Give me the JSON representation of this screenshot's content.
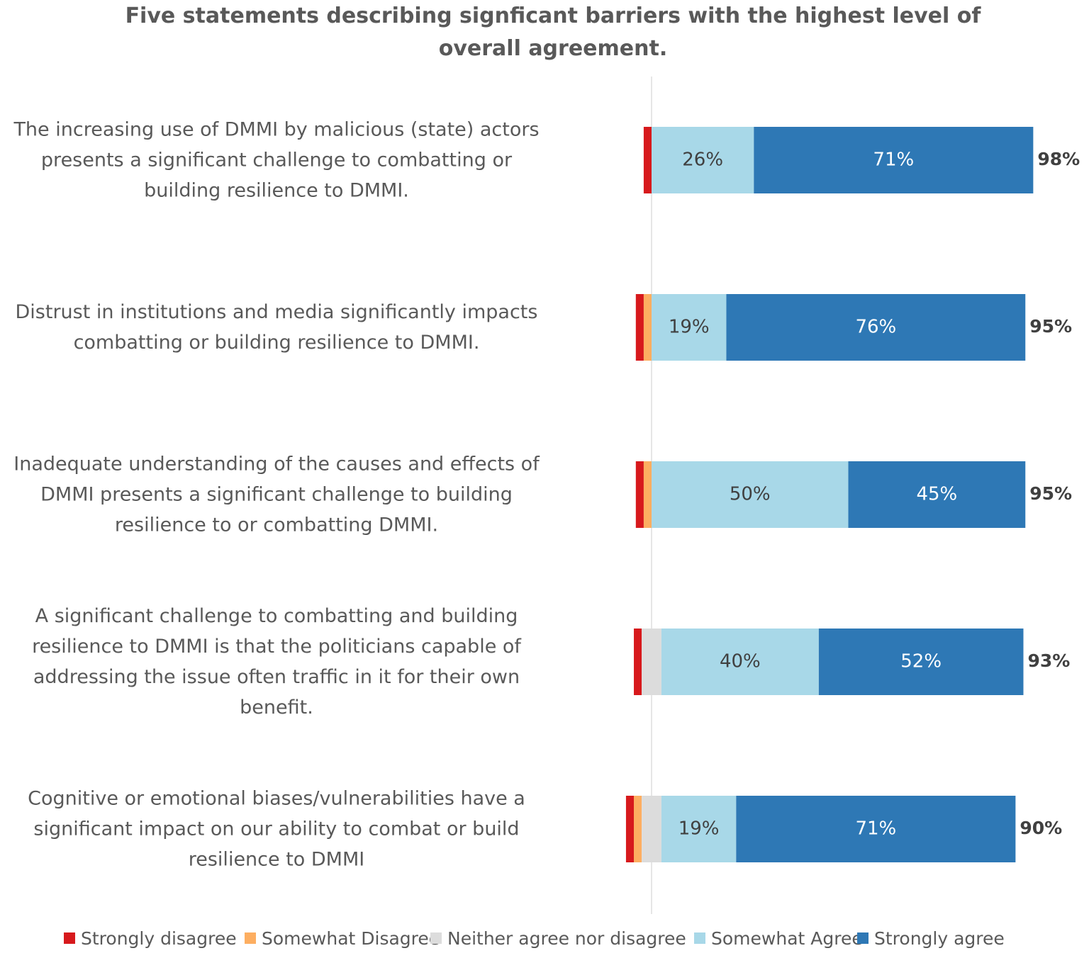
{
  "chart_data": {
    "type": "diverging-bar",
    "title": "Five statements describing signficant barriers with the highest level of overall agreement.",
    "categories": [
      "The increasing use of DMMI by malicious (state) actors presents a significant challenge to combatting or building resilience to DMMI.",
      "Distrust in institutions and media significantly impacts combatting or building resilience to DMMI.",
      "Inadequate understanding of the causes and effects of DMMI presents a significant challenge to building resilience to or combatting DMMI.",
      "A significant challenge to combatting and building resilience to DMMI is that the politicians capable of addressing the issue often traffic in it for their own benefit.",
      "Cognitive or emotional biases/vulnerabilities have a significant impact on our ability to combat or build resilience to DMMI"
    ],
    "series": [
      {
        "name": "Strongly disagree",
        "color": "#d7191c",
        "side": "negative",
        "values": [
          2,
          2,
          2,
          2,
          2
        ]
      },
      {
        "name": "Somewhat Disagree",
        "color": "#fdae61",
        "side": "negative",
        "values": [
          0,
          2,
          2,
          0,
          2
        ]
      },
      {
        "name": "Neither agree nor disagree",
        "color": "#dcdcdc",
        "side": "neutral",
        "values": [
          0,
          0,
          0,
          5,
          5
        ]
      },
      {
        "name": "Somewhat Agree",
        "color": "#a8d8e8",
        "side": "positive",
        "values": [
          26,
          19,
          50,
          40,
          19
        ],
        "value_labels": [
          "26%",
          "19%",
          "50%",
          "40%",
          "19%"
        ]
      },
      {
        "name": "Strongly agree",
        "color": "#2e78b5",
        "side": "positive",
        "values": [
          71,
          76,
          45,
          52,
          71
        ],
        "value_labels": [
          "71%",
          "76%",
          "45%",
          "52%",
          "71%"
        ]
      }
    ],
    "totals": {
      "values": [
        98,
        95,
        95,
        93,
        90
      ],
      "value_labels": [
        "98%",
        "95%",
        "95%",
        "93%",
        "90%"
      ]
    },
    "legend": "bottom"
  }
}
